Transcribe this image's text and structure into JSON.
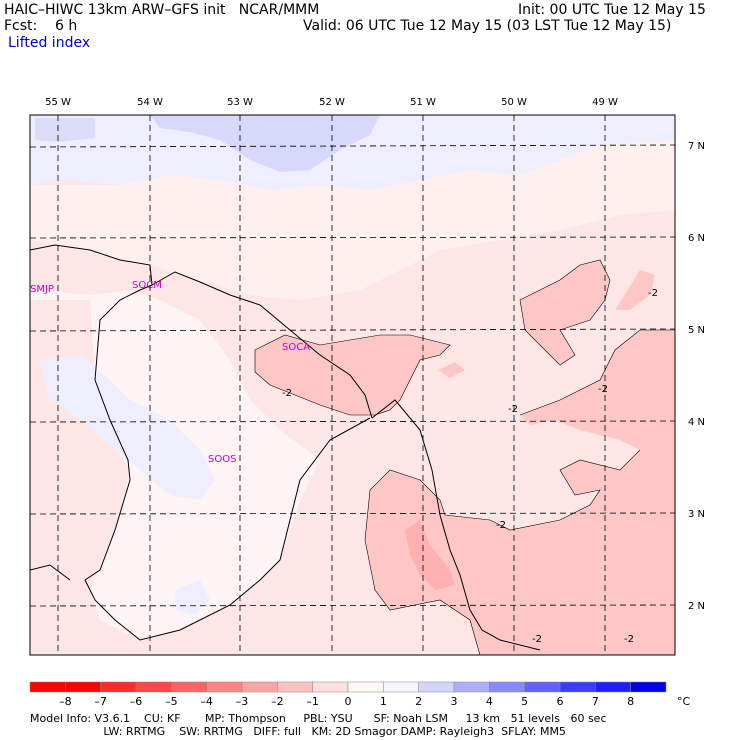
{
  "header": {
    "line1_left": "HAIC–HIWC 13km ARW–GFS init   NCAR/MMM",
    "line1_right": "Init: 00 UTC Tue 12 May 15",
    "line2_left": "Fcst:    6 h",
    "line2_right": "Valid: 06 UTC Tue 12 May 15 (03 LST Tue 12 May 15)",
    "line3": "Lifted index"
  },
  "map": {
    "lon_labels": [
      "55 W",
      "54 W",
      "53 W",
      "52 W",
      "51 W",
      "50 W",
      "49 W"
    ],
    "lat_labels": [
      "7 N",
      "6 N",
      "5 N",
      "4 N",
      "3 N",
      "2 N"
    ],
    "stations": [
      "SMJP",
      "SOCM",
      "SOCA",
      "SOOS"
    ],
    "contour_labels": [
      "-2",
      "-2",
      "-2",
      "-2",
      "-2",
      "-2",
      "-2"
    ]
  },
  "colorbar": {
    "labels": [
      "–8",
      "–7",
      "–6",
      "–5",
      "–4",
      "–3",
      "–2",
      "–1",
      "0",
      "1",
      "2",
      "3",
      "4",
      "5",
      "6",
      "7",
      "8"
    ],
    "unit": "°C",
    "colors": [
      "#ff0000",
      "#ff2a2a",
      "#ff4646",
      "#ff6464",
      "#ff8484",
      "#ffa4a4",
      "#ffc2c2",
      "#ffe0e0",
      "#fff6f6",
      "#f6f6ff",
      "#d4d4ff",
      "#aeaeff",
      "#8888ff",
      "#6262ff",
      "#3c3cff",
      "#1e1eff",
      "#0000ee"
    ]
  },
  "footer": {
    "line1": "Model Info: V3.6.1    CU: KF       MP: Thompson     PBL: YSU      SF: Noah LSM     13 km   51 levels   60 sec",
    "line2": "                     LW: RRTMG    SW: RRTMG   DIFF: full   KM: 2D Smagor DAMP: Rayleigh3  SFLAY: MM5"
  }
}
